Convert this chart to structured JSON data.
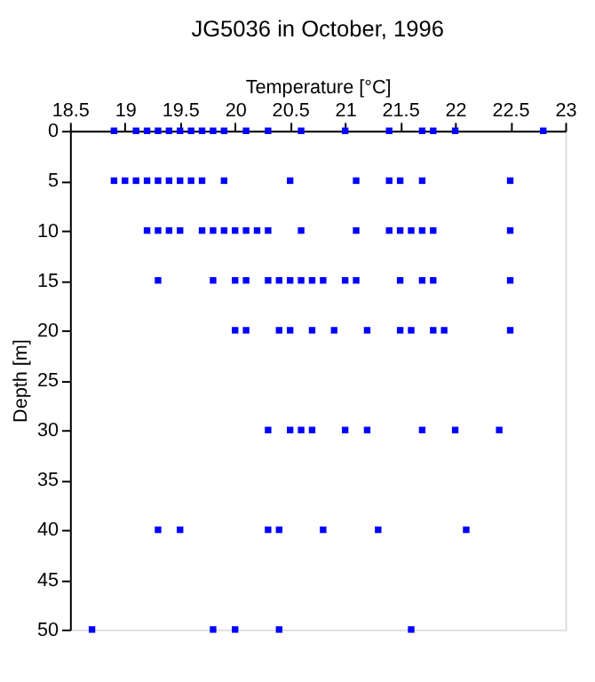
{
  "chart_data": {
    "type": "scatter",
    "title": "JG5036 in October, 1996",
    "xlabel": "Temperature [°C]",
    "ylabel": "Depth [m]",
    "xlim": [
      18.5,
      23
    ],
    "xticks": [
      18.5,
      19,
      19.5,
      20,
      20.5,
      21,
      21.5,
      22,
      22.5,
      23
    ],
    "ylim": [
      50,
      0
    ],
    "yticks": [
      0,
      5,
      10,
      15,
      20,
      25,
      30,
      35,
      40,
      45,
      50
    ],
    "grid": false,
    "marker": "square",
    "series": [
      {
        "color": "#0000ff",
        "x": [
          18.9,
          19.1,
          19.2,
          19.3,
          19.4,
          19.5,
          19.6,
          19.7,
          19.8,
          19.9,
          20.1,
          20.3,
          20.6,
          21.0,
          21.4,
          21.7,
          21.8,
          22.0,
          22.8,
          18.9,
          19.0,
          19.1,
          19.2,
          19.3,
          19.4,
          19.5,
          19.6,
          19.7,
          19.9,
          20.5,
          21.1,
          21.4,
          21.5,
          21.7,
          22.5,
          19.2,
          19.3,
          19.4,
          19.5,
          19.7,
          19.8,
          19.9,
          20.0,
          20.1,
          20.2,
          20.3,
          20.6,
          21.1,
          21.4,
          21.5,
          21.6,
          21.7,
          21.8,
          22.5,
          19.3,
          19.8,
          20.0,
          20.1,
          20.3,
          20.4,
          20.5,
          20.6,
          20.7,
          20.8,
          21.0,
          21.1,
          21.5,
          21.7,
          21.8,
          22.5,
          20.0,
          20.1,
          20.4,
          20.5,
          20.7,
          20.9,
          21.2,
          21.5,
          21.6,
          21.8,
          21.9,
          22.5,
          20.3,
          20.5,
          20.6,
          20.7,
          21.0,
          21.2,
          21.7,
          22.0,
          22.4,
          19.3,
          19.5,
          20.3,
          20.4,
          20.8,
          21.3,
          22.1,
          18.7,
          19.8,
          20.0,
          20.4,
          21.6
        ],
        "values": [
          0,
          0,
          0,
          0,
          0,
          0,
          0,
          0,
          0,
          0,
          0,
          0,
          0,
          0,
          0,
          0,
          0,
          0,
          0,
          5,
          5,
          5,
          5,
          5,
          5,
          5,
          5,
          5,
          5,
          5,
          5,
          5,
          5,
          5,
          5,
          10,
          10,
          10,
          10,
          10,
          10,
          10,
          10,
          10,
          10,
          10,
          10,
          10,
          10,
          10,
          10,
          10,
          10,
          10,
          15,
          15,
          15,
          15,
          15,
          15,
          15,
          15,
          15,
          15,
          15,
          15,
          15,
          15,
          15,
          15,
          20,
          20,
          20,
          20,
          20,
          20,
          20,
          20,
          20,
          20,
          20,
          20,
          30,
          30,
          30,
          30,
          30,
          30,
          30,
          30,
          30,
          40,
          40,
          40,
          40,
          40,
          40,
          40,
          50,
          50,
          50,
          50,
          50
        ]
      }
    ]
  }
}
